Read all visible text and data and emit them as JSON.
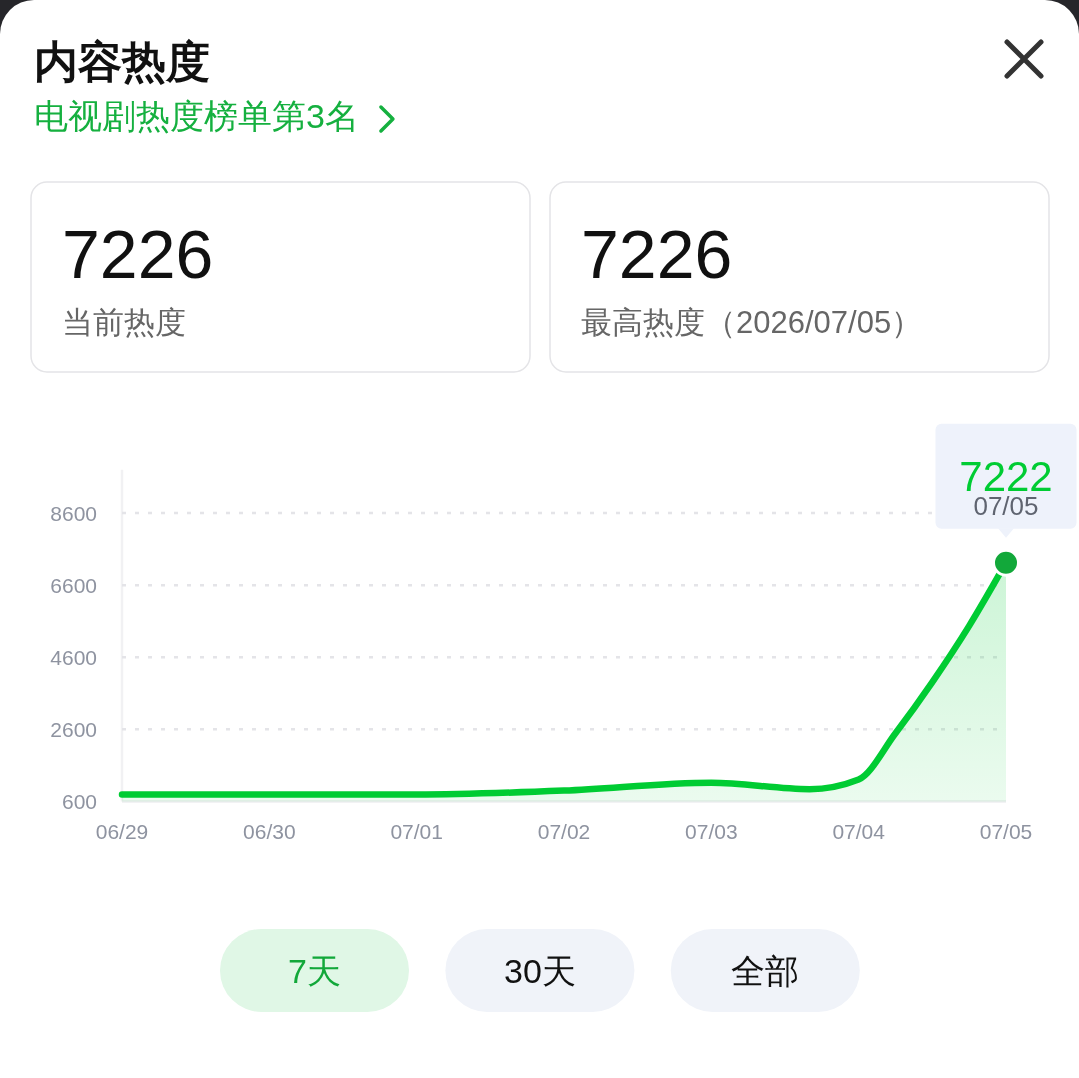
{
  "chart_data": {
    "type": "area",
    "title": "内容热度",
    "subtitle": "电视剧热度榜单第3名",
    "x": [
      "2026-06-29",
      "2026-06-30",
      "2026-07-01",
      "2026-07-02",
      "2026-07-03",
      "2026-07-03T16:00",
      "2026-07-04",
      "2026-07-04T06:00",
      "2026-07-04T12:00",
      "2026-07-04T18:00",
      "2026-07-05"
    ],
    "values": [
      790,
      790,
      790,
      900,
      1120,
      940,
      1210,
      2490,
      3910,
      5470,
      7222
    ],
    "color": "#00cc33",
    "xlim": [
      "2026-06-29",
      "2026-07-05"
    ],
    "xticks": [
      {
        "value": "2026-06-29",
        "label": "06/29"
      },
      {
        "value": "2026-06-30",
        "label": "06/30"
      },
      {
        "value": "2026-07-01",
        "label": "07/01"
      },
      {
        "value": "2026-07-02",
        "label": "07/02"
      },
      {
        "value": "2026-07-03",
        "label": "07/03"
      },
      {
        "value": "2026-07-04",
        "label": "07/04"
      },
      {
        "value": "2026-07-05",
        "label": "07/05"
      }
    ],
    "ylim": [
      600,
      9800
    ],
    "yticks": [
      600,
      2600,
      4600,
      6600,
      8600
    ],
    "grid": "y",
    "annotations": [
      "7226",
      "当前热度",
      "7226",
      "最高热度（2026/07/05）",
      "7天",
      "30天",
      "全部",
      {
        "text": "7222",
        "x": "2026-07-05",
        "y": 7222
      },
      {
        "text": "07/05",
        "x": "2026-07-05",
        "y": 7222
      }
    ]
  }
}
